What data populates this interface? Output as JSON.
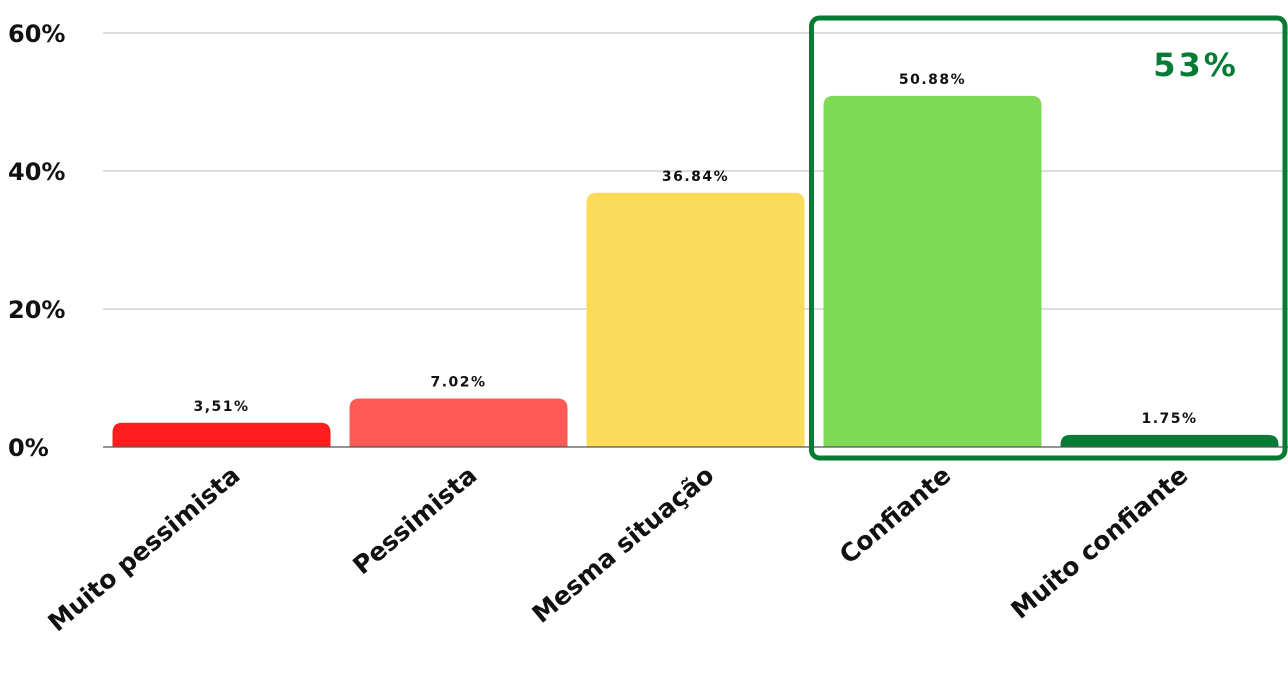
{
  "chart_data": {
    "type": "bar",
    "categories": [
      "Muito pessimista",
      "Pessimista",
      "Mesma situação",
      "Confiante",
      "Muito confiante"
    ],
    "values": [
      3.51,
      7.02,
      36.84,
      50.88,
      1.75
    ],
    "data_labels": [
      "3,51%",
      "7.02%",
      "36.84%",
      "50.88%",
      "1.75%"
    ],
    "bar_colors": [
      "#ff1d1d",
      "#ff5a55",
      "#fcdb5a",
      "#7ed957",
      "#067b34"
    ],
    "title": "",
    "xlabel": "",
    "ylabel": "",
    "ylim": [
      0,
      60
    ],
    "yticks": [
      0,
      20,
      40,
      60
    ],
    "ytick_labels": [
      "0%",
      "20%",
      "40%",
      "60%"
    ],
    "grid": true,
    "highlight": {
      "categories": [
        "Confiante",
        "Muito confiante"
      ],
      "label": "53%",
      "color": "#067b34"
    }
  }
}
